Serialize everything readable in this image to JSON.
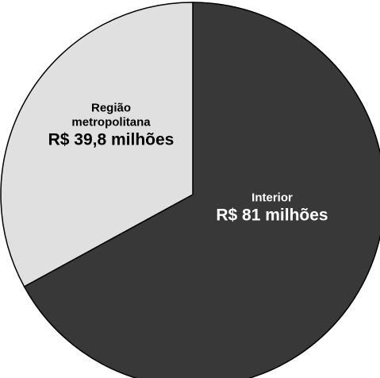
{
  "chart_data": {
    "type": "pie",
    "categories": [
      "Interior",
      "Região metropolitana"
    ],
    "values": [
      81,
      39.8
    ],
    "value_labels": [
      "R$ 81 milhões",
      "R$ 39,8 milhões"
    ],
    "colors": [
      "#383838",
      "#e0e0e0"
    ]
  }
}
